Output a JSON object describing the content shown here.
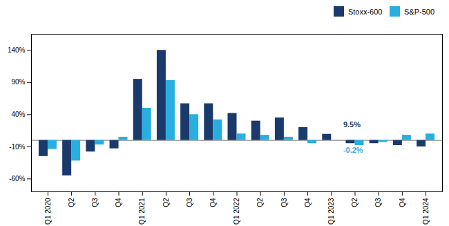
{
  "chart_data": {
    "type": "bar",
    "categories": [
      "Q1 2020",
      "Q2",
      "Q3",
      "Q4",
      "Q1 2021",
      "Q2",
      "Q3",
      "Q4",
      "Q1 2022",
      "Q2",
      "Q3",
      "Q4",
      "Q1 2023",
      "Q2",
      "Q3",
      "Q4",
      "Q1 2024"
    ],
    "series": [
      {
        "name": "Stoxx-600",
        "color": "#1a3a6b",
        "values": [
          -25,
          -55,
          -18,
          -13,
          95,
          140,
          57,
          57,
          42,
          30,
          35,
          20,
          9.5,
          -5,
          -5,
          -8,
          -10
        ]
      },
      {
        "name": "S&P-500",
        "color": "#29aee0",
        "values": [
          -14,
          -32,
          -7,
          5,
          50,
          93,
          40,
          32,
          10,
          8,
          5,
          -5,
          -0.2,
          -8,
          -3,
          8,
          10
        ]
      }
    ],
    "ylim": [
      -80,
      165
    ],
    "yticks": [
      {
        "value": -60,
        "label": "-60%"
      },
      {
        "value": -10,
        "label": "-10%"
      },
      {
        "value": 40,
        "label": "40%"
      },
      {
        "value": 90,
        "label": "90%"
      },
      {
        "value": 140,
        "label": "140%"
      }
    ],
    "grid": false,
    "legend": "upper right",
    "annotations": [
      {
        "text": "9.5%",
        "category": "Q1 2023",
        "series": "Stoxx-600",
        "color": "#1a3a6b"
      },
      {
        "text": "-0.2%",
        "category": "Q1 2023",
        "series": "S&P-500",
        "color": "#29aee0"
      }
    ]
  }
}
